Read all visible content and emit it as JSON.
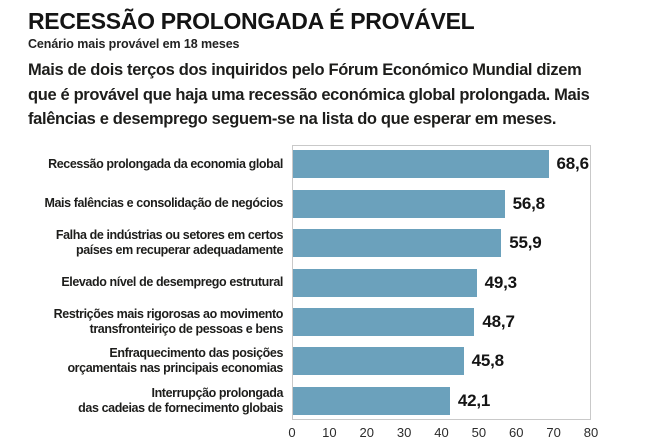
{
  "header": {
    "title": "RECESSÃO PROLONGADA É PROVÁVEL",
    "subtitle": "Cenário mais provável em 18 meses",
    "description": "Mais de dois terços dos inquiridos pelo Fórum Económico Mundial dizem\nque é provável que haja uma recessão económica global prolongada. Mais\nfalências e desemprego seguem-se na lista do que esperar em meses."
  },
  "chart_data": {
    "type": "bar",
    "orientation": "horizontal",
    "title": "RECESSÃO PROLONGADA É PROVÁVEL",
    "subtitle": "Cenário mais provável em 18 meses",
    "categories": [
      "Recessão prolongada da economia global",
      "Mais falências e consolidação de negócios",
      "Falha de indústrias ou setores em certos\npaíses em recuperar adequadamente",
      "Elevado nível de desemprego estrutural",
      "Restrições mais rigorosas ao movimento\ntransfronteiriço de pessoas e bens",
      "Enfraquecimento das posições\norçamentais nas principais economias",
      "Interrupção prolongada\ndas cadeias de fornecimento globais"
    ],
    "values": [
      68.6,
      56.8,
      55.9,
      49.3,
      48.7,
      45.8,
      42.1
    ],
    "value_labels": [
      "68,6",
      "56,8",
      "55,9",
      "49,3",
      "48,7",
      "45,8",
      "42,1"
    ],
    "xlim": [
      0,
      80
    ],
    "x_ticks": [
      "0",
      "10",
      "20",
      "30",
      "40",
      "50",
      "60",
      "70",
      "80"
    ],
    "bar_color": "#6BA1BC",
    "plot_border_color": "#c9c9c9",
    "grid": false,
    "legend": "none",
    "xlabel": "",
    "ylabel": ""
  }
}
